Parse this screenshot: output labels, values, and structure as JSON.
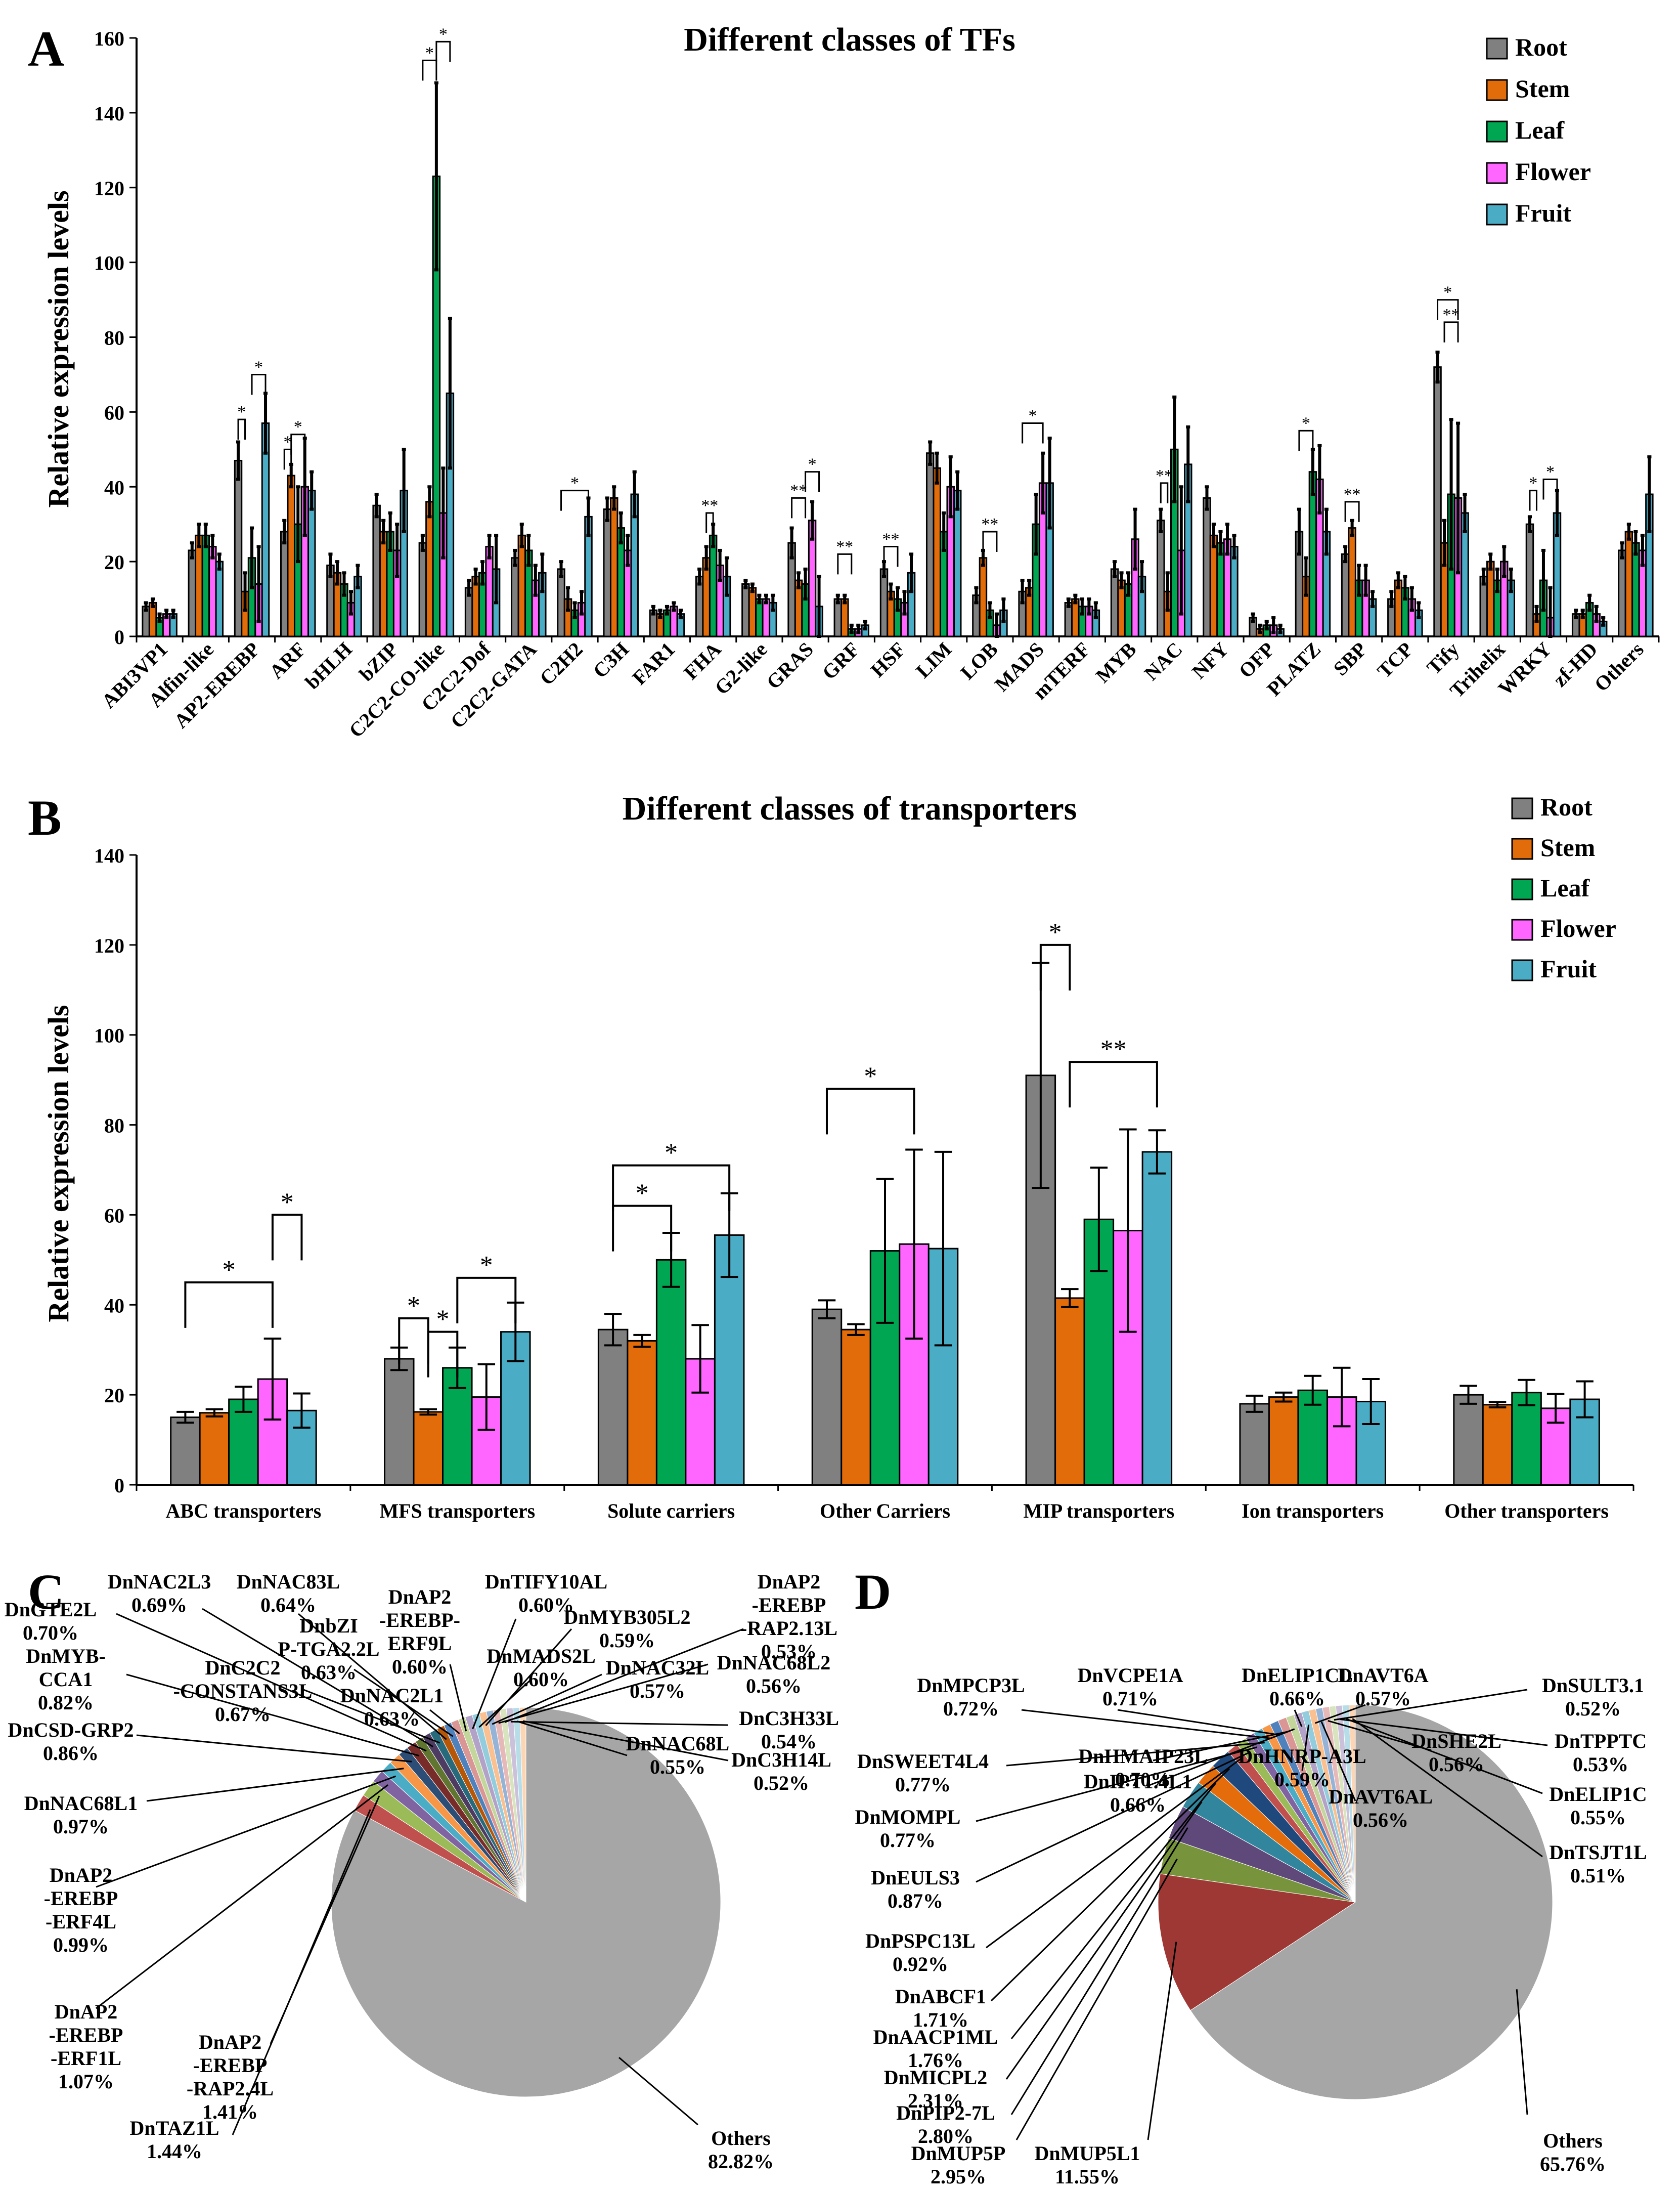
{
  "panels": {
    "a": "A",
    "b": "B",
    "c": "C",
    "d": "D"
  },
  "colors": {
    "Root": "#808080",
    "Stem": "#e36c0a",
    "Leaf": "#00a651",
    "Flower": "#ff66ff",
    "Fruit": "#4bacc6"
  },
  "sig_star": "*",
  "sig_double": "**",
  "chart_data": [
    {
      "id": "A",
      "type": "bar",
      "title": "Different classes of TFs",
      "ylabel": "Relative expression levels",
      "xlabel": "",
      "ylim": [
        0,
        160
      ],
      "yticks": [
        0,
        20,
        40,
        60,
        80,
        100,
        120,
        140,
        160
      ],
      "legend": "top-right",
      "categories": [
        "ABI3VP1",
        "Alfin-like",
        "AP2-EREBP",
        "ARF",
        "bHLH",
        "bZIP",
        "C2C2-CO-like",
        "C2C2-Dof",
        "C2C2-GATA",
        "C2H2",
        "C3H",
        "FAR1",
        "FHA",
        "G2-like",
        "GRAS",
        "GRF",
        "HSF",
        "LIM",
        "LOB",
        "MADS",
        "mTERF",
        "MYB",
        "NAC",
        "NFY",
        "OFP",
        "PLATZ",
        "SBP",
        "TCP",
        "Tify",
        "Trihelix",
        "WRKY",
        "zf-HD",
        "Others"
      ],
      "series": [
        {
          "name": "Root",
          "values": [
            8,
            23,
            47,
            28,
            19,
            35,
            25,
            13,
            21,
            18,
            34,
            7,
            16,
            14,
            25,
            10,
            18,
            49,
            11,
            12,
            9,
            18,
            31,
            37,
            5,
            28,
            22,
            10,
            72,
            16,
            30,
            6,
            23
          ]
        },
        {
          "name": "Stem",
          "values": [
            9,
            27,
            12,
            43,
            17,
            28,
            36,
            16,
            27,
            10,
            37,
            6,
            21,
            13,
            15,
            10,
            12,
            45,
            21,
            13,
            10,
            15,
            12,
            27,
            2,
            16,
            29,
            15,
            25,
            20,
            6,
            6,
            28
          ]
        },
        {
          "name": "Leaf",
          "values": [
            5,
            27,
            21,
            30,
            14,
            28,
            123,
            17,
            23,
            7,
            29,
            7,
            27,
            10,
            14,
            2,
            10,
            28,
            7,
            30,
            8,
            14,
            50,
            25,
            3,
            44,
            15,
            13,
            38,
            15,
            15,
            9,
            25
          ]
        },
        {
          "name": "Flower",
          "values": [
            6,
            24,
            14,
            40,
            9,
            23,
            33,
            24,
            15,
            9,
            23,
            8,
            19,
            10,
            31,
            2,
            9,
            40,
            3,
            41,
            8,
            26,
            23,
            26,
            3,
            42,
            15,
            10,
            37,
            20,
            5,
            6,
            23
          ]
        },
        {
          "name": "Fruit",
          "values": [
            6,
            20,
            57,
            39,
            16,
            39,
            65,
            18,
            17,
            32,
            38,
            6,
            16,
            9,
            8,
            3,
            17,
            39,
            7,
            41,
            7,
            16,
            46,
            24,
            2,
            28,
            10,
            7,
            33,
            15,
            33,
            4,
            38
          ]
        }
      ],
      "errors": [
        [
          1,
          2,
          5,
          3,
          3,
          3,
          2,
          2,
          2,
          2,
          3,
          1,
          2,
          1,
          4,
          1,
          2,
          3,
          2,
          3,
          1,
          2,
          3,
          3,
          1,
          6,
          2,
          2,
          4,
          2,
          2,
          1,
          2
        ],
        [
          1,
          3,
          5,
          3,
          3,
          3,
          4,
          2,
          3,
          3,
          3,
          1,
          3,
          1,
          2,
          1,
          2,
          4,
          2,
          2,
          1,
          2,
          5,
          3,
          1,
          5,
          2,
          2,
          6,
          2,
          2,
          1,
          2
        ],
        [
          1,
          3,
          8,
          10,
          3,
          5,
          25,
          3,
          4,
          2,
          4,
          1,
          3,
          1,
          4,
          1,
          3,
          5,
          2,
          8,
          2,
          3,
          14,
          3,
          1,
          6,
          4,
          3,
          20,
          3,
          8,
          2,
          3
        ],
        [
          1,
          3,
          10,
          13,
          3,
          7,
          12,
          3,
          4,
          3,
          4,
          1,
          4,
          1,
          5,
          1,
          3,
          8,
          3,
          8,
          2,
          8,
          17,
          4,
          2,
          9,
          4,
          3,
          20,
          4,
          8,
          2,
          4
        ],
        [
          1,
          2,
          8,
          5,
          3,
          11,
          20,
          9,
          5,
          5,
          6,
          1,
          5,
          2,
          8,
          1,
          5,
          5,
          3,
          12,
          2,
          4,
          10,
          3,
          1,
          6,
          2,
          2,
          5,
          3,
          6,
          1,
          10
        ]
      ]
    },
    {
      "id": "B",
      "type": "bar",
      "title": "Different classes of transporters",
      "ylabel": "Relative expression levels",
      "xlabel": "",
      "ylim": [
        0,
        140
      ],
      "yticks": [
        0,
        20,
        40,
        60,
        80,
        100,
        120,
        140
      ],
      "legend": "top-right",
      "categories": [
        "ABC transporters",
        "MFS transporters",
        "Solute carriers",
        "Other Carriers",
        "MIP transporters",
        "Ion transporters",
        "Other transporters"
      ],
      "series": [
        {
          "name": "Root",
          "values": [
            15,
            28,
            34.5,
            39,
            91,
            18,
            20
          ]
        },
        {
          "name": "Stem",
          "values": [
            16,
            16.2,
            32,
            34.5,
            41.5,
            19.5,
            17.8
          ]
        },
        {
          "name": "Leaf",
          "values": [
            19,
            26,
            50,
            52,
            59,
            21,
            20.5
          ]
        },
        {
          "name": "Flower",
          "values": [
            23.5,
            19.5,
            28,
            53.5,
            56.5,
            19.5,
            17
          ]
        },
        {
          "name": "Fruit",
          "values": [
            16.5,
            34,
            55.5,
            52.5,
            74,
            18.5,
            19
          ]
        }
      ],
      "errors": [
        [
          1.2,
          2.5,
          3.5,
          2,
          25,
          1.8,
          2
        ],
        [
          0.8,
          0.6,
          1.3,
          1.2,
          2,
          1,
          0.6
        ],
        [
          2.8,
          4.5,
          6,
          16,
          11.5,
          3.2,
          2.8
        ],
        [
          9,
          7.3,
          7.5,
          21,
          22.5,
          6.5,
          3.2
        ],
        [
          3.8,
          6.5,
          9.3,
          21.5,
          4.8,
          5,
          4
        ]
      ]
    },
    {
      "id": "C",
      "type": "pie",
      "title": "",
      "slices": [
        {
          "label": "DnTAZ1L",
          "pct": "1.44%",
          "value": 1.44,
          "color": "#c0504d"
        },
        {
          "label": "DnAP2-EREBP-RAP2.4L",
          "pct": "1.41%",
          "value": 1.41,
          "color": "#9bbb59"
        },
        {
          "label": "DnAP2-EREBP-ERF1L",
          "pct": "1.07%",
          "value": 1.07,
          "color": "#8064a2"
        },
        {
          "label": "DnAP2-EREBP-ERF4L",
          "pct": "0.99%",
          "value": 0.99,
          "color": "#4bacc6"
        },
        {
          "label": "DnNAC68L1",
          "pct": "0.97%",
          "value": 0.97,
          "color": "#f79646"
        },
        {
          "label": "DnCSD-GRP2",
          "pct": "0.86%",
          "value": 0.86,
          "color": "#2c4d75"
        },
        {
          "label": "DnMYB-CCA1",
          "pct": "0.82%",
          "value": 0.82,
          "color": "#772c2a"
        },
        {
          "label": "DnGTE2L",
          "pct": "0.70%",
          "value": 0.7,
          "color": "#5f7530"
        },
        {
          "label": "DnNAC2L3",
          "pct": "0.69%",
          "value": 0.69,
          "color": "#4d3b62"
        },
        {
          "label": "DnC2C2-CONSTANS3L",
          "pct": "0.67%",
          "value": 0.67,
          "color": "#276a7c"
        },
        {
          "label": "DnNAC83L",
          "pct": "0.64%",
          "value": 0.64,
          "color": "#b65708"
        },
        {
          "label": "DnbZIP-TGA2.2L",
          "pct": "0.63%",
          "value": 0.63,
          "color": "#4f81bd"
        },
        {
          "label": "DnNAC2L1",
          "pct": "0.63%",
          "value": 0.63,
          "color": "#d99694"
        },
        {
          "label": "DnAP2-EREBP-ERF9L",
          "pct": "0.60%",
          "value": 0.6,
          "color": "#c3d69b"
        },
        {
          "label": "DnTIFY10AL",
          "pct": "0.60%",
          "value": 0.6,
          "color": "#b3a2c7"
        },
        {
          "label": "DnMADS2L",
          "pct": "0.60%",
          "value": 0.6,
          "color": "#93cddd"
        },
        {
          "label": "DnMYB305L2",
          "pct": "0.59%",
          "value": 0.59,
          "color": "#fac090"
        },
        {
          "label": "DnNAC32L",
          "pct": "0.57%",
          "value": 0.57,
          "color": "#95b3d7"
        },
        {
          "label": "DnNAC68L2",
          "pct": "0.56%",
          "value": 0.56,
          "color": "#e6b9b8"
        },
        {
          "label": "DnAP2-EREBP-RAP2.13L",
          "pct": "0.53%",
          "value": 0.53,
          "color": "#d7e4bd"
        },
        {
          "label": "DnC3H33L",
          "pct": "0.54%",
          "value": 0.54,
          "color": "#ccc1da"
        },
        {
          "label": "DnNAC68L",
          "pct": "0.55%",
          "value": 0.55,
          "color": "#b7dee8"
        },
        {
          "label": "DnC3H14L",
          "pct": "0.52%",
          "value": 0.52,
          "color": "#fcd5b5"
        },
        {
          "label": "Others",
          "pct": "82.82%",
          "value": 82.82,
          "color": "#a6a6a6"
        }
      ]
    },
    {
      "id": "D",
      "type": "pie",
      "title": "",
      "slices": [
        {
          "label": "DnMUP5L1",
          "pct": "11.55%",
          "value": 11.55,
          "color": "#9e3835"
        },
        {
          "label": "DnMUP5P",
          "pct": "2.95%",
          "value": 2.95,
          "color": "#77933c"
        },
        {
          "label": "DnPIP2-7L",
          "pct": "2.80%",
          "value": 2.8,
          "color": "#5f497a"
        },
        {
          "label": "DnMICPL2",
          "pct": "2.31%",
          "value": 2.31,
          "color": "#31859c"
        },
        {
          "label": "DnAACP1ML",
          "pct": "1.76%",
          "value": 1.76,
          "color": "#e46c0a"
        },
        {
          "label": "DnABCF1",
          "pct": "1.71%",
          "value": 1.71,
          "color": "#1f497d"
        },
        {
          "label": "DnPSPC13L",
          "pct": "0.92%",
          "value": 0.92,
          "color": "#c0504d"
        },
        {
          "label": "DnEULS3",
          "pct": "0.87%",
          "value": 0.87,
          "color": "#9bbb59"
        },
        {
          "label": "DnMOMPL",
          "pct": "0.77%",
          "value": 0.77,
          "color": "#8064a2"
        },
        {
          "label": "DnSWEET4L4",
          "pct": "0.77%",
          "value": 0.77,
          "color": "#4bacc6"
        },
        {
          "label": "DnMPCP3L",
          "pct": "0.72%",
          "value": 0.72,
          "color": "#f79646"
        },
        {
          "label": "DnVCPE1A",
          "pct": "0.71%",
          "value": 0.71,
          "color": "#4f81bd"
        },
        {
          "label": "DnHMAIP23L",
          "pct": "0.70%",
          "value": 0.7,
          "color": "#d99694"
        },
        {
          "label": "DnIPT1.4L1",
          "pct": "0.66%",
          "value": 0.66,
          "color": "#c3d69b"
        },
        {
          "label": "DnELIP1CL",
          "pct": "0.66%",
          "value": 0.66,
          "color": "#b3a2c7"
        },
        {
          "label": "DnHNRP-A3L",
          "pct": "0.59%",
          "value": 0.59,
          "color": "#93cddd"
        },
        {
          "label": "DnAVT6A",
          "pct": "0.57%",
          "value": 0.57,
          "color": "#fac090"
        },
        {
          "label": "DnAVT6AL",
          "pct": "0.56%",
          "value": 0.56,
          "color": "#95b3d7"
        },
        {
          "label": "DnSHE2L",
          "pct": "0.56%",
          "value": 0.56,
          "color": "#e6b9b8"
        },
        {
          "label": "DnSULT3.1",
          "pct": "0.52%",
          "value": 0.52,
          "color": "#d7e4bd"
        },
        {
          "label": "DnTPPTC",
          "pct": "0.53%",
          "value": 0.53,
          "color": "#ccc1da"
        },
        {
          "label": "DnELIP1C",
          "pct": "0.55%",
          "value": 0.55,
          "color": "#b7dee8"
        },
        {
          "label": "DnTSJT1L",
          "pct": "0.51%",
          "value": 0.51,
          "color": "#fcd5b5"
        },
        {
          "label": "Others",
          "pct": "65.76%",
          "value": 65.76,
          "color": "#a6a6a6"
        }
      ]
    }
  ]
}
